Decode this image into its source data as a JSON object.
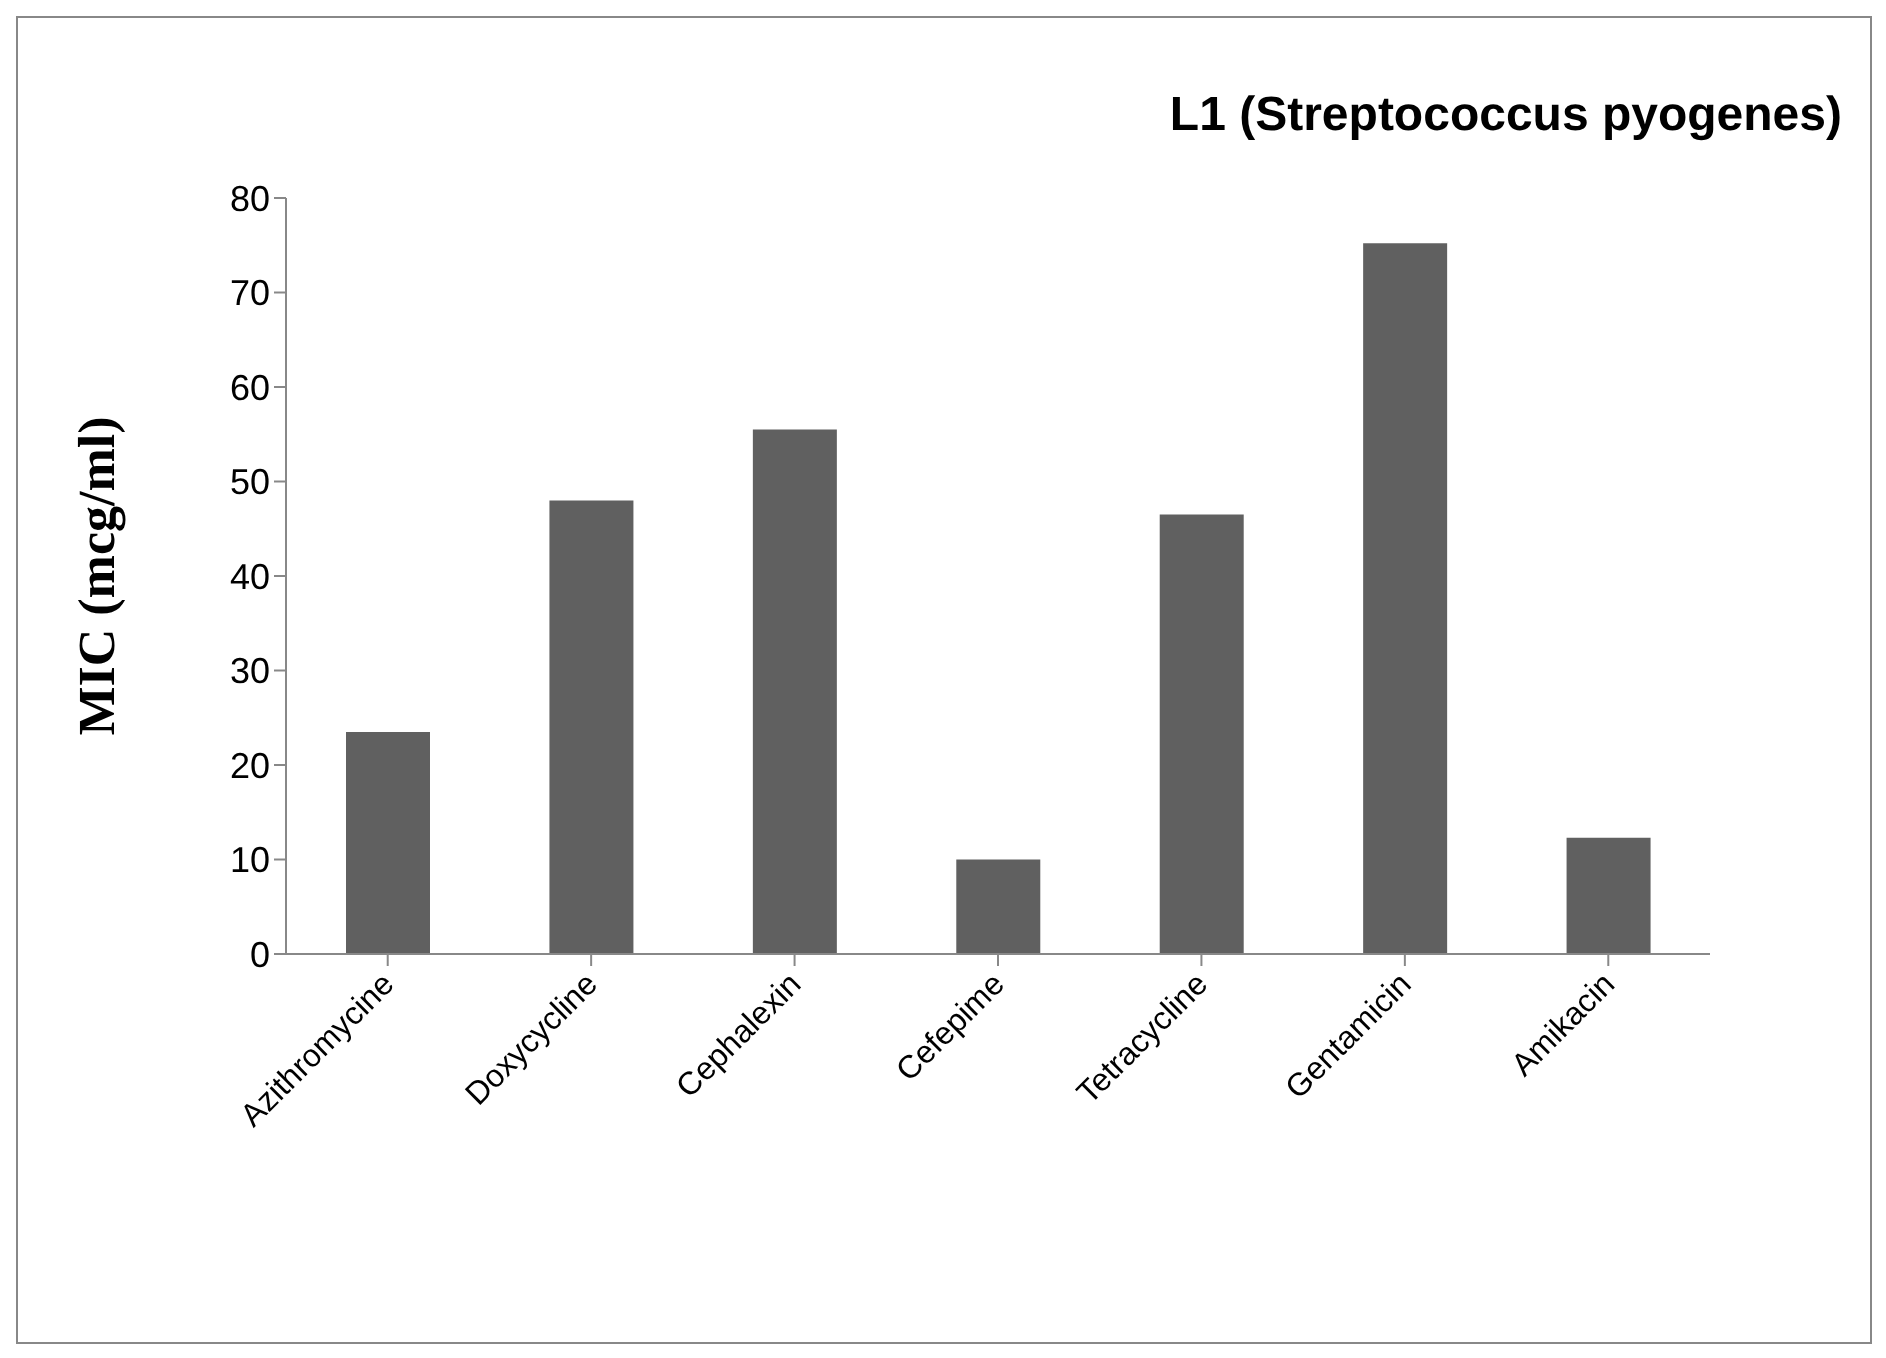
{
  "chart_data": {
    "type": "bar",
    "title": "L1 (Streptococcus pyogenes)",
    "ylabel": "MIC (mcg/ml)",
    "categories": [
      "Azithromycine",
      "Doxycycline",
      "Cephalexin",
      "Cefepime",
      "Tetracycline",
      "Gentamicin",
      "Amikacin"
    ],
    "values": [
      23.5,
      48,
      55.5,
      10,
      46.5,
      75.2,
      12.3
    ],
    "color": "#606060",
    "ylim": [
      0,
      80
    ],
    "yticks": [
      0,
      10,
      20,
      30,
      40,
      50,
      60,
      70,
      80
    ],
    "grid": false
  }
}
